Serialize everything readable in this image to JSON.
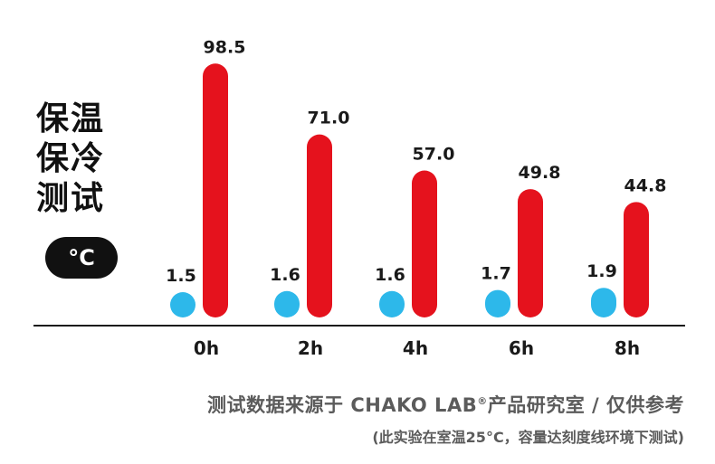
{
  "side_title": {
    "line1": "保温",
    "line2": "保冷",
    "line3": "测试"
  },
  "unit": "°C",
  "footer": {
    "line1_prefix": "测试数据来源于 CHAKO LAB",
    "line1_mark": "®",
    "line1_suffix": "产品研究室 / 仅供参考",
    "line2": "(此实验在室温25°C，容量达刻度线环境下测试)"
  },
  "colors": {
    "cold": "#2db8ea",
    "hot": "#e5121d",
    "axis": "#1a1a1a"
  },
  "chart_data": {
    "type": "bar",
    "categories": [
      "0h",
      "2h",
      "4h",
      "6h",
      "8h"
    ],
    "series": [
      {
        "values": [
          1.5,
          1.6,
          1.6,
          1.7,
          1.9
        ],
        "labels": [
          "1.5",
          "1.6",
          "1.6",
          "1.7",
          "1.9"
        ]
      },
      {
        "values": [
          98.5,
          71.0,
          57.0,
          49.8,
          44.8
        ],
        "labels": [
          "98.5",
          "71.0",
          "57.0",
          "49.8",
          "44.8"
        ]
      }
    ],
    "title": "",
    "xlabel": "",
    "ylabel": "",
    "ylim": [
      0,
      100
    ],
    "grid": false,
    "legend": "none"
  }
}
